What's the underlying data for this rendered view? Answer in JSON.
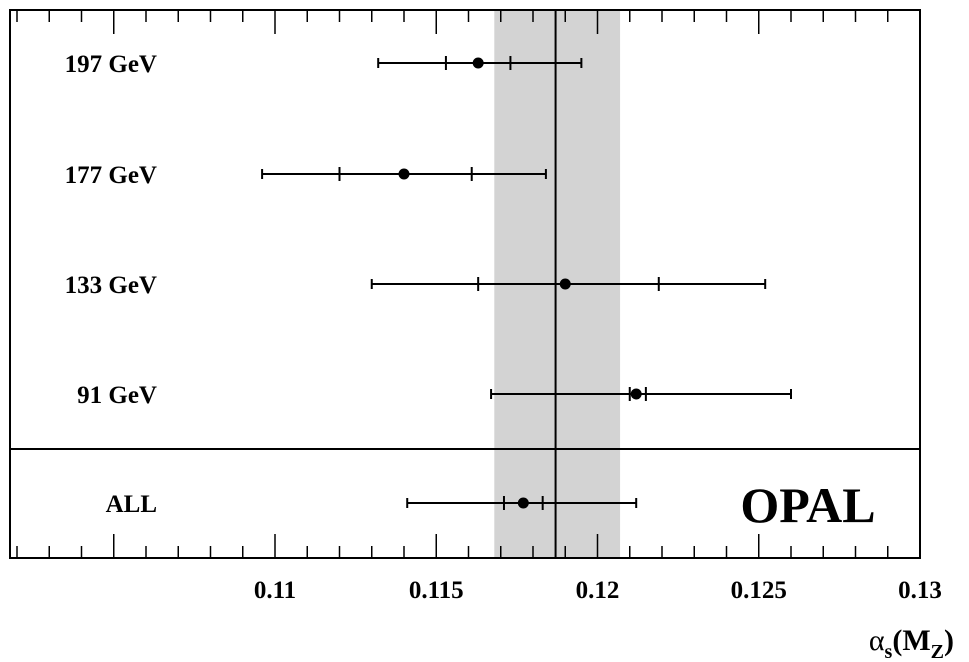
{
  "chart_data": {
    "type": "scatter",
    "subtype": "error-bar summary",
    "brand_label": "OPAL",
    "xlabel": {
      "base": "α",
      "sub": "s",
      "paren_open": "(M",
      "sub2": "Z",
      "paren_close": ")"
    },
    "xlim": [
      0.1,
      0.13
    ],
    "x_ticks": [
      {
        "value": 0.11,
        "label": "0.11"
      },
      {
        "value": 0.115,
        "label": "0.115"
      },
      {
        "value": 0.12,
        "label": "0.12"
      },
      {
        "value": 0.125,
        "label": "0.125"
      },
      {
        "value": 0.13,
        "label": "0.13"
      }
    ],
    "minor_step": 0.001,
    "reference": {
      "value": 0.1187,
      "band": [
        0.1168,
        0.1207
      ],
      "band_color": "#d3d3d3"
    },
    "measurements": [
      {
        "label": "197 GeV",
        "value": 0.1163,
        "inner": [
          0.1153,
          0.1173
        ],
        "outer": [
          0.1132,
          0.1195
        ]
      },
      {
        "label": "177 GeV",
        "value": 0.114,
        "inner": [
          0.112,
          0.1161
        ],
        "outer": [
          0.1096,
          0.1184
        ]
      },
      {
        "label": "133 GeV",
        "value": 0.119,
        "inner": [
          0.1163,
          0.1219
        ],
        "outer": [
          0.113,
          0.1252
        ]
      },
      {
        "label": "91 GeV",
        "value": 0.1212,
        "inner": [
          0.121,
          0.1215
        ],
        "outer": [
          0.1167,
          0.126
        ]
      }
    ],
    "combined": {
      "label": "ALL",
      "value": 0.1177,
      "inner": [
        0.1171,
        0.1183
      ],
      "outer": [
        0.1141,
        0.1212
      ]
    }
  }
}
